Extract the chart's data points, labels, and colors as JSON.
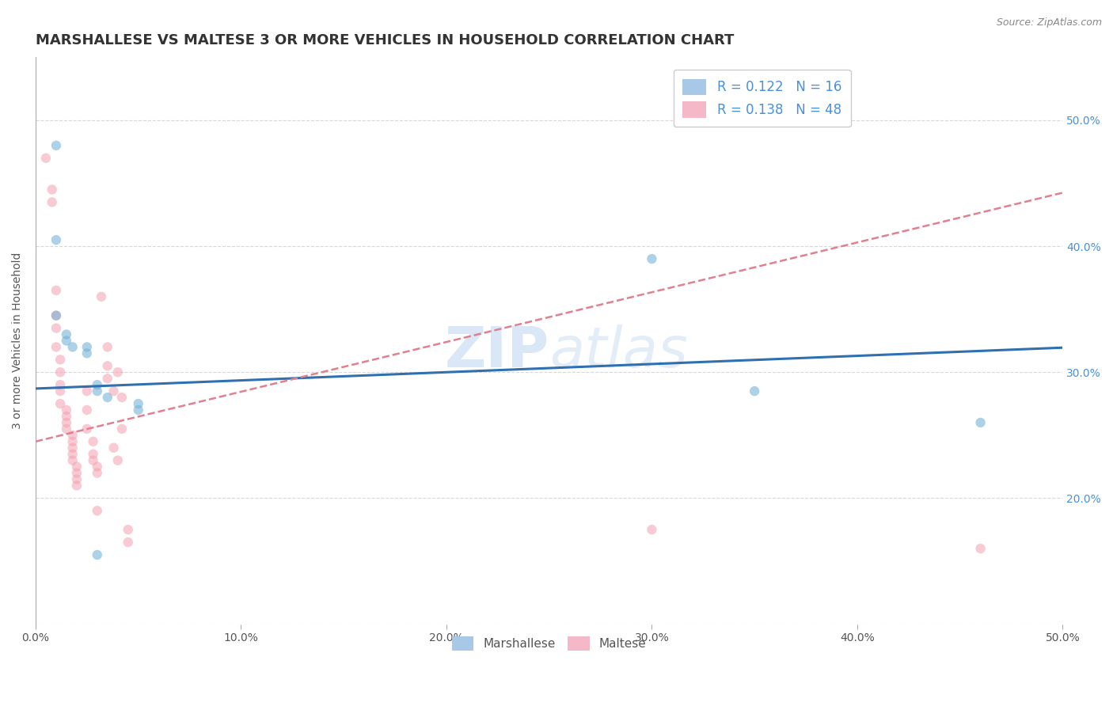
{
  "title": "MARSHALLESE VS MALTESE 3 OR MORE VEHICLES IN HOUSEHOLD CORRELATION CHART",
  "source": "Source: ZipAtlas.com",
  "ylabel": "3 or more Vehicles in Household",
  "xlabel": "",
  "xlim": [
    0.0,
    0.5
  ],
  "ylim": [
    0.1,
    0.55
  ],
  "xticks": [
    0.0,
    0.1,
    0.2,
    0.3,
    0.4,
    0.5
  ],
  "yticks": [
    0.1,
    0.2,
    0.3,
    0.4,
    0.5
  ],
  "xtick_labels": [
    "0.0%",
    "10.0%",
    "20.0%",
    "30.0%",
    "40.0%",
    "50.0%"
  ],
  "ytick_labels_right": [
    "",
    "20.0%",
    "30.0%",
    "40.0%",
    "50.0%"
  ],
  "marshallese_scatter": [
    [
      0.01,
      0.48
    ],
    [
      0.01,
      0.405
    ],
    [
      0.01,
      0.345
    ],
    [
      0.015,
      0.33
    ],
    [
      0.015,
      0.325
    ],
    [
      0.018,
      0.32
    ],
    [
      0.025,
      0.32
    ],
    [
      0.025,
      0.315
    ],
    [
      0.03,
      0.29
    ],
    [
      0.03,
      0.285
    ],
    [
      0.035,
      0.28
    ],
    [
      0.05,
      0.275
    ],
    [
      0.05,
      0.27
    ],
    [
      0.3,
      0.39
    ],
    [
      0.35,
      0.285
    ],
    [
      0.46,
      0.26
    ],
    [
      0.03,
      0.155
    ]
  ],
  "maltese_scatter": [
    [
      0.005,
      0.47
    ],
    [
      0.008,
      0.445
    ],
    [
      0.008,
      0.435
    ],
    [
      0.01,
      0.365
    ],
    [
      0.01,
      0.345
    ],
    [
      0.01,
      0.335
    ],
    [
      0.01,
      0.32
    ],
    [
      0.012,
      0.31
    ],
    [
      0.012,
      0.3
    ],
    [
      0.012,
      0.29
    ],
    [
      0.012,
      0.285
    ],
    [
      0.012,
      0.275
    ],
    [
      0.015,
      0.27
    ],
    [
      0.015,
      0.265
    ],
    [
      0.015,
      0.26
    ],
    [
      0.015,
      0.255
    ],
    [
      0.018,
      0.25
    ],
    [
      0.018,
      0.245
    ],
    [
      0.018,
      0.24
    ],
    [
      0.018,
      0.235
    ],
    [
      0.018,
      0.23
    ],
    [
      0.02,
      0.225
    ],
    [
      0.02,
      0.22
    ],
    [
      0.02,
      0.215
    ],
    [
      0.02,
      0.21
    ],
    [
      0.025,
      0.285
    ],
    [
      0.025,
      0.27
    ],
    [
      0.025,
      0.255
    ],
    [
      0.028,
      0.245
    ],
    [
      0.028,
      0.235
    ],
    [
      0.028,
      0.23
    ],
    [
      0.03,
      0.225
    ],
    [
      0.03,
      0.22
    ],
    [
      0.03,
      0.19
    ],
    [
      0.032,
      0.36
    ],
    [
      0.035,
      0.32
    ],
    [
      0.035,
      0.305
    ],
    [
      0.035,
      0.295
    ],
    [
      0.038,
      0.285
    ],
    [
      0.038,
      0.24
    ],
    [
      0.04,
      0.23
    ],
    [
      0.04,
      0.3
    ],
    [
      0.042,
      0.28
    ],
    [
      0.042,
      0.255
    ],
    [
      0.045,
      0.175
    ],
    [
      0.045,
      0.165
    ],
    [
      0.3,
      0.175
    ],
    [
      0.46,
      0.16
    ]
  ],
  "marshallese_line": {
    "intercept": 0.287,
    "slope": 0.065
  },
  "maltese_line": {
    "intercept": 0.245,
    "slope": 0.395
  },
  "marshallese_color": "#6baed6",
  "maltese_color": "#f4a0b0",
  "marshallese_line_color": "#3070b0",
  "maltese_line_color": "#e08090",
  "background_color": "#ffffff",
  "grid_color": "#d8d8d8",
  "watermark_text": "ZIPAtlas",
  "title_fontsize": 13,
  "axis_label_fontsize": 10,
  "tick_fontsize": 10,
  "scatter_size": 80,
  "scatter_alpha": 0.55
}
